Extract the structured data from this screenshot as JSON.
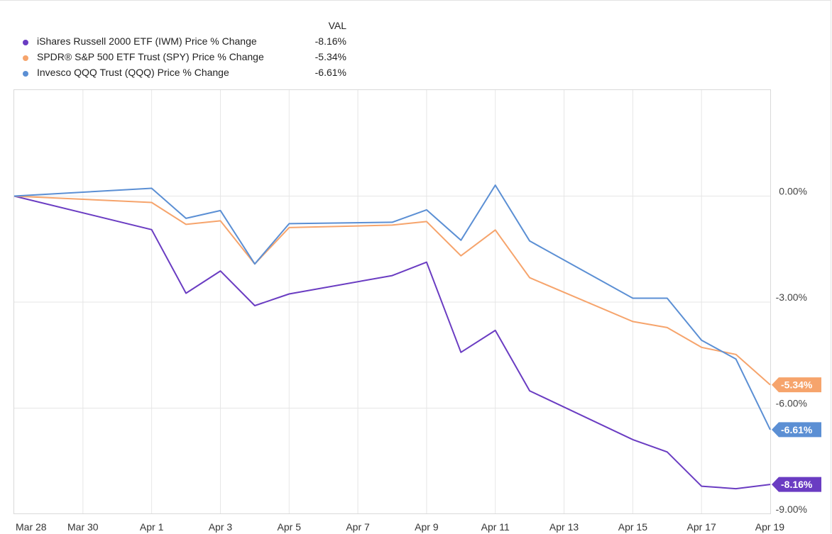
{
  "legend": {
    "header": "VAL",
    "items": [
      {
        "name": "iShares Russell 2000 ETF (IWM) Price % Change",
        "value": "-8.16%",
        "color": "#6a3cc2"
      },
      {
        "name": "SPDR® S&P 500 ETF Trust (SPY) Price % Change",
        "value": "-5.34%",
        "color": "#f6a46c"
      },
      {
        "name": "Invesco QQQ Trust (QQQ) Price % Change",
        "value": "-6.61%",
        "color": "#5b8fd4"
      }
    ]
  },
  "chart_data": {
    "type": "line",
    "x_ticks": [
      "Mar 28",
      "Mar 30",
      "Apr 1",
      "Apr 3",
      "Apr 5",
      "Apr 7",
      "Apr 9",
      "Apr 11",
      "Apr 13",
      "Apr 15",
      "Apr 17",
      "Apr 19"
    ],
    "y_ticks": [
      {
        "value": 0,
        "label": "0.00%"
      },
      {
        "value": -3,
        "label": "-3.00%"
      },
      {
        "value": -6,
        "label": "-6.00%"
      },
      {
        "value": -9,
        "label": "-9.00%"
      }
    ],
    "ylim": [
      -9,
      3
    ],
    "xlim": [
      "2024-03-28",
      "2024-04-19"
    ],
    "grid": true,
    "legend_position": "top-left",
    "series": [
      {
        "name": "iShares Russell 2000 ETF (IWM) Price % Change",
        "color": "#6a3cc2",
        "end_label": "-8.16%",
        "points": [
          {
            "x": "2024-03-28",
            "y": 0.0
          },
          {
            "x": "2024-04-01",
            "y": -0.95
          },
          {
            "x": "2024-04-02",
            "y": -2.75
          },
          {
            "x": "2024-04-03",
            "y": -2.12
          },
          {
            "x": "2024-04-04",
            "y": -3.1
          },
          {
            "x": "2024-04-05",
            "y": -2.77
          },
          {
            "x": "2024-04-08",
            "y": -2.25
          },
          {
            "x": "2024-04-09",
            "y": -1.87
          },
          {
            "x": "2024-04-10",
            "y": -4.42
          },
          {
            "x": "2024-04-11",
            "y": -3.8
          },
          {
            "x": "2024-04-12",
            "y": -5.51
          },
          {
            "x": "2024-04-15",
            "y": -6.89
          },
          {
            "x": "2024-04-16",
            "y": -7.24
          },
          {
            "x": "2024-04-17",
            "y": -8.21
          },
          {
            "x": "2024-04-18",
            "y": -8.28
          },
          {
            "x": "2024-04-19",
            "y": -8.16
          }
        ]
      },
      {
        "name": "SPDR® S&P 500 ETF Trust (SPY) Price % Change",
        "color": "#f6a46c",
        "end_label": "-5.34%",
        "points": [
          {
            "x": "2024-03-28",
            "y": 0.0
          },
          {
            "x": "2024-04-01",
            "y": -0.18
          },
          {
            "x": "2024-04-02",
            "y": -0.8
          },
          {
            "x": "2024-04-03",
            "y": -0.7
          },
          {
            "x": "2024-04-04",
            "y": -1.92
          },
          {
            "x": "2024-04-05",
            "y": -0.89
          },
          {
            "x": "2024-04-08",
            "y": -0.82
          },
          {
            "x": "2024-04-09",
            "y": -0.72
          },
          {
            "x": "2024-04-10",
            "y": -1.69
          },
          {
            "x": "2024-04-11",
            "y": -0.96
          },
          {
            "x": "2024-04-12",
            "y": -2.31
          },
          {
            "x": "2024-04-15",
            "y": -3.55
          },
          {
            "x": "2024-04-16",
            "y": -3.72
          },
          {
            "x": "2024-04-17",
            "y": -4.28
          },
          {
            "x": "2024-04-18",
            "y": -4.48
          },
          {
            "x": "2024-04-19",
            "y": -5.34
          }
        ]
      },
      {
        "name": "Invesco QQQ Trust (QQQ) Price % Change",
        "color": "#5b8fd4",
        "end_label": "-6.61%",
        "points": [
          {
            "x": "2024-03-28",
            "y": 0.0
          },
          {
            "x": "2024-04-01",
            "y": 0.22
          },
          {
            "x": "2024-04-02",
            "y": -0.63
          },
          {
            "x": "2024-04-03",
            "y": -0.41
          },
          {
            "x": "2024-04-04",
            "y": -1.92
          },
          {
            "x": "2024-04-05",
            "y": -0.78
          },
          {
            "x": "2024-04-08",
            "y": -0.74
          },
          {
            "x": "2024-04-09",
            "y": -0.39
          },
          {
            "x": "2024-04-10",
            "y": -1.25
          },
          {
            "x": "2024-04-11",
            "y": 0.31
          },
          {
            "x": "2024-04-12",
            "y": -1.27
          },
          {
            "x": "2024-04-15",
            "y": -2.89
          },
          {
            "x": "2024-04-16",
            "y": -2.89
          },
          {
            "x": "2024-04-17",
            "y": -4.08
          },
          {
            "x": "2024-04-18",
            "y": -4.61
          },
          {
            "x": "2024-04-19",
            "y": -6.61
          }
        ]
      }
    ]
  }
}
